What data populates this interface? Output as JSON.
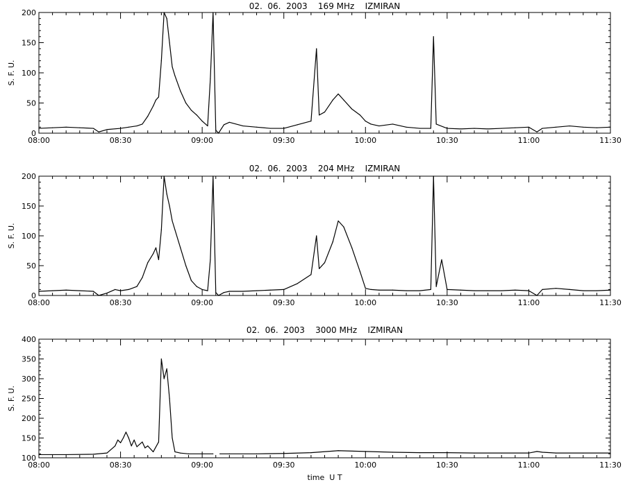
{
  "chart_data": [
    {
      "type": "line",
      "title": "02.  06.  2003    169 MHz    IZMIRAN",
      "ylabel": "S. F. U.",
      "xlabel": "",
      "xlim": [
        "08:00",
        "11:30"
      ],
      "ylim": [
        0,
        200
      ],
      "yticks": [
        0,
        50,
        100,
        150,
        200
      ],
      "xticks": [
        "08:00",
        "08:30",
        "09:00",
        "09:30",
        "10:00",
        "10:30",
        "11:00",
        "11:30"
      ],
      "series": [
        {
          "values_description": "solar radio flux",
          "points": [
            [
              "08:00",
              8
            ],
            [
              "08:05",
              9
            ],
            [
              "08:10",
              10
            ],
            [
              "08:15",
              9
            ],
            [
              "08:20",
              8
            ],
            [
              "08:22",
              2
            ],
            [
              "08:25",
              6
            ],
            [
              "08:30",
              8
            ],
            [
              "08:33",
              10
            ],
            [
              "08:36",
              12
            ],
            [
              "08:38",
              15
            ],
            [
              "08:40",
              28
            ],
            [
              "08:42",
              45
            ],
            [
              "08:43",
              55
            ],
            [
              "08:44",
              60
            ],
            [
              "08:45",
              120
            ],
            [
              "08:46",
              200
            ],
            [
              "08:47",
              190
            ],
            [
              "08:48",
              150
            ],
            [
              "08:49",
              110
            ],
            [
              "08:50",
              95
            ],
            [
              "08:52",
              70
            ],
            [
              "08:54",
              50
            ],
            [
              "08:56",
              38
            ],
            [
              "08:58",
              30
            ],
            [
              "09:00",
              20
            ],
            [
              "09:02",
              12
            ],
            [
              "09:03",
              90
            ],
            [
              "09:04",
              200
            ],
            [
              "09:05",
              5
            ],
            [
              "09:06",
              0
            ],
            [
              "09:08",
              14
            ],
            [
              "09:10",
              18
            ],
            [
              "09:15",
              12
            ],
            [
              "09:20",
              10
            ],
            [
              "09:25",
              8
            ],
            [
              "09:30",
              8
            ],
            [
              "09:35",
              14
            ],
            [
              "09:40",
              20
            ],
            [
              "09:42",
              140
            ],
            [
              "09:43",
              30
            ],
            [
              "09:45",
              35
            ],
            [
              "09:48",
              55
            ],
            [
              "09:50",
              65
            ],
            [
              "09:52",
              55
            ],
            [
              "09:55",
              40
            ],
            [
              "09:58",
              30
            ],
            [
              "10:00",
              20
            ],
            [
              "10:02",
              15
            ],
            [
              "10:05",
              12
            ],
            [
              "10:10",
              15
            ],
            [
              "10:15",
              10
            ],
            [
              "10:20",
              8
            ],
            [
              "10:24",
              8
            ],
            [
              "10:25",
              160
            ],
            [
              "10:26",
              15
            ],
            [
              "10:30",
              8
            ],
            [
              "10:35",
              7
            ],
            [
              "10:40",
              8
            ],
            [
              "10:45",
              7
            ],
            [
              "10:50",
              8
            ],
            [
              "10:55",
              9
            ],
            [
              "11:00",
              10
            ],
            [
              "11:03",
              2
            ],
            [
              "11:05",
              8
            ],
            [
              "11:10",
              10
            ],
            [
              "11:15",
              12
            ],
            [
              "11:20",
              10
            ],
            [
              "11:25",
              9
            ],
            [
              "11:30",
              10
            ]
          ]
        }
      ]
    },
    {
      "type": "line",
      "title": "02.  06.  2003    204 MHz    IZMIRAN",
      "ylabel": "S. F. U.",
      "xlabel": "",
      "xlim": [
        "08:00",
        "11:30"
      ],
      "ylim": [
        0,
        200
      ],
      "yticks": [
        0,
        50,
        100,
        150,
        200
      ],
      "xticks": [
        "08:00",
        "08:30",
        "09:00",
        "09:30",
        "10:00",
        "10:30",
        "11:00",
        "11:30"
      ],
      "series": [
        {
          "values_description": "solar radio flux",
          "points": [
            [
              "08:00",
              7
            ],
            [
              "08:05",
              8
            ],
            [
              "08:10",
              9
            ],
            [
              "08:15",
              8
            ],
            [
              "08:20",
              7
            ],
            [
              "08:22",
              -3
            ],
            [
              "08:25",
              4
            ],
            [
              "08:28",
              10
            ],
            [
              "08:30",
              8
            ],
            [
              "08:33",
              10
            ],
            [
              "08:36",
              15
            ],
            [
              "08:38",
              30
            ],
            [
              "08:40",
              55
            ],
            [
              "08:42",
              70
            ],
            [
              "08:43",
              80
            ],
            [
              "08:44",
              60
            ],
            [
              "08:45",
              110
            ],
            [
              "08:46",
              200
            ],
            [
              "08:47",
              170
            ],
            [
              "08:48",
              150
            ],
            [
              "08:49",
              125
            ],
            [
              "08:50",
              110
            ],
            [
              "08:52",
              80
            ],
            [
              "08:54",
              50
            ],
            [
              "08:56",
              25
            ],
            [
              "08:58",
              15
            ],
            [
              "09:00",
              10
            ],
            [
              "09:02",
              8
            ],
            [
              "09:03",
              60
            ],
            [
              "09:04",
              200
            ],
            [
              "09:05",
              5
            ],
            [
              "09:06",
              -3
            ],
            [
              "09:08",
              5
            ],
            [
              "09:10",
              7
            ],
            [
              "09:15",
              7
            ],
            [
              "09:20",
              8
            ],
            [
              "09:25",
              9
            ],
            [
              "09:30",
              10
            ],
            [
              "09:35",
              20
            ],
            [
              "09:40",
              35
            ],
            [
              "09:42",
              100
            ],
            [
              "09:43",
              45
            ],
            [
              "09:45",
              55
            ],
            [
              "09:48",
              90
            ],
            [
              "09:50",
              125
            ],
            [
              "09:52",
              115
            ],
            [
              "09:55",
              80
            ],
            [
              "09:58",
              40
            ],
            [
              "10:00",
              12
            ],
            [
              "10:02",
              10
            ],
            [
              "10:05",
              9
            ],
            [
              "10:10",
              9
            ],
            [
              "10:15",
              8
            ],
            [
              "10:20",
              8
            ],
            [
              "10:24",
              10
            ],
            [
              "10:25",
              200
            ],
            [
              "10:26",
              15
            ],
            [
              "10:28",
              60
            ],
            [
              "10:30",
              10
            ],
            [
              "10:35",
              9
            ],
            [
              "10:40",
              8
            ],
            [
              "10:45",
              8
            ],
            [
              "10:50",
              8
            ],
            [
              "10:55",
              9
            ],
            [
              "11:00",
              8
            ],
            [
              "11:03",
              -3
            ],
            [
              "11:05",
              10
            ],
            [
              "11:10",
              12
            ],
            [
              "11:15",
              10
            ],
            [
              "11:20",
              8
            ],
            [
              "11:25",
              8
            ],
            [
              "11:30",
              9
            ]
          ]
        }
      ]
    },
    {
      "type": "line",
      "title": "02.  06.  2003    3000 MHz    IZMIRAN",
      "ylabel": "S. F. U.",
      "xlabel": "time  U T",
      "xlim": [
        "08:00",
        "11:30"
      ],
      "ylim": [
        100,
        400
      ],
      "yticks": [
        100,
        150,
        200,
        250,
        300,
        350,
        400
      ],
      "xticks": [
        "08:00",
        "08:30",
        "09:00",
        "09:30",
        "10:00",
        "10:30",
        "11:00",
        "11:30"
      ],
      "series": [
        {
          "values_description": "solar radio flux",
          "points": [
            [
              "08:00",
              108
            ],
            [
              "08:10",
              108
            ],
            [
              "08:20",
              109
            ],
            [
              "08:25",
              112
            ],
            [
              "08:28",
              130
            ],
            [
              "08:29",
              145
            ],
            [
              "08:30",
              138
            ],
            [
              "08:31",
              150
            ],
            [
              "08:32",
              165
            ],
            [
              "08:33",
              150
            ],
            [
              "08:34",
              130
            ],
            [
              "08:35",
              145
            ],
            [
              "08:36",
              128
            ],
            [
              "08:38",
              140
            ],
            [
              "08:39",
              125
            ],
            [
              "08:40",
              130
            ],
            [
              "08:42",
              115
            ],
            [
              "08:44",
              140
            ],
            [
              "08:45",
              350
            ],
            [
              "08:46",
              300
            ],
            [
              "08:47",
              325
            ],
            [
              "08:48",
              250
            ],
            [
              "08:49",
              150
            ],
            [
              "08:50",
              115
            ],
            [
              "08:52",
              112
            ],
            [
              "08:55",
              110
            ],
            [
              "09:00",
              110
            ],
            [
              "09:04",
              110
            ],
            [
              "09:04.5",
              null
            ],
            [
              "09:06",
              null
            ],
            [
              "09:06.5",
              110
            ],
            [
              "09:10",
              110
            ],
            [
              "09:20",
              110
            ],
            [
              "09:30",
              111
            ],
            [
              "09:40",
              113
            ],
            [
              "09:50",
              118
            ],
            [
              "10:00",
              116
            ],
            [
              "10:10",
              114
            ],
            [
              "10:20",
              113
            ],
            [
              "10:30",
              113
            ],
            [
              "10:40",
              112
            ],
            [
              "10:50",
              112
            ],
            [
              "11:00",
              112
            ],
            [
              "11:03",
              116
            ],
            [
              "11:05",
              114
            ],
            [
              "11:10",
              112
            ],
            [
              "11:20",
              112
            ],
            [
              "11:30",
              112
            ]
          ]
        }
      ]
    }
  ]
}
